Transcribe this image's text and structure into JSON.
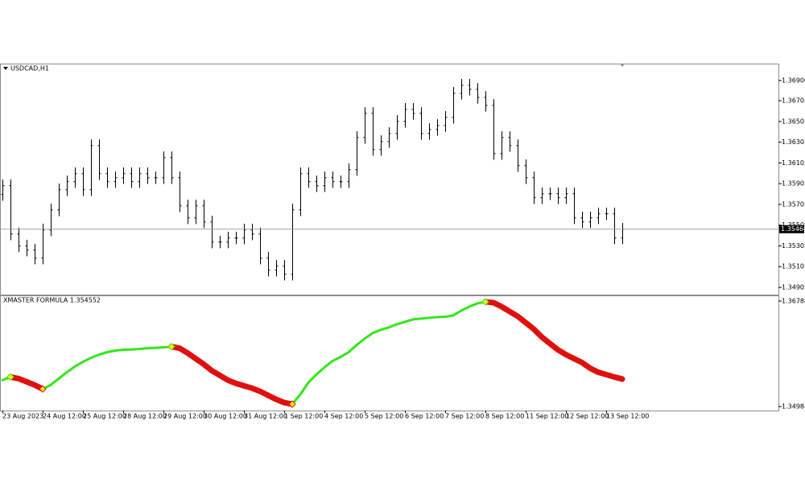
{
  "chart_data": [
    {
      "type": "ohlc",
      "title": "USDCAD,H1",
      "color": "#000000",
      "price_line_color": "#9a9a9a",
      "categories": [
        "23 Aug 2023",
        null,
        null,
        null,
        null,
        "24 Aug 12:00",
        null,
        null,
        null,
        null,
        "25 Aug 12:00",
        null,
        null,
        null,
        null,
        "28 Aug 12:00",
        null,
        null,
        null,
        null,
        "29 Aug 12:00",
        null,
        null,
        null,
        null,
        "30 Aug 12:00",
        null,
        null,
        null,
        null,
        "31 Aug 12:00",
        null,
        null,
        null,
        null,
        "1 Sep 12:00",
        null,
        null,
        null,
        null,
        "4 Sep 12:00",
        null,
        null,
        null,
        null,
        "5 Sep 12:00",
        null,
        null,
        null,
        null,
        "6 Sep 12:00",
        null,
        null,
        null,
        null,
        "7 Sep 12:00",
        null,
        null,
        null,
        null,
        "8 Sep 12:00",
        null,
        null,
        null,
        null,
        "11 Sep 12:00",
        null,
        null,
        null,
        null,
        "12 Sep 12:00",
        null,
        null,
        null,
        null,
        "13 Sep 12:00",
        null,
        null
      ],
      "open": [
        1.358,
        1.35885,
        1.3542,
        1.35304,
        1.35265,
        1.35187,
        1.35459,
        1.35652,
        1.35846,
        1.35924,
        1.36001,
        1.35846,
        1.36272,
        1.36001,
        1.35924,
        1.35962,
        1.36001,
        1.35924,
        1.36001,
        1.35962,
        1.35962,
        1.36156,
        1.35962,
        1.35691,
        1.35575,
        1.35691,
        1.35536,
        1.35342,
        1.35342,
        1.35381,
        1.35381,
        1.35459,
        1.3542,
        1.35187,
        1.35071,
        1.3511,
        1.35032,
        1.35652,
        1.36001,
        1.35924,
        1.35885,
        1.35962,
        1.35924,
        1.35924,
        1.3604,
        1.3635,
        1.36582,
        1.36234,
        1.36311,
        1.36389,
        1.36505,
        1.36621,
        1.36582,
        1.36389,
        1.36427,
        1.36466,
        1.36544,
        1.36776,
        1.36854,
        1.36815,
        1.36737,
        1.3666,
        1.36195,
        1.3635,
        1.36272,
        1.36079,
        1.35962,
        1.35769,
        1.35807,
        1.35807,
        1.35769,
        1.35807,
        1.35575,
        1.35536,
        1.35575,
        1.35614,
        1.35614,
        1.35381
      ],
      "high": [
        1.35945,
        1.35945,
        1.3548,
        1.35364,
        1.35325,
        1.35519,
        1.35712,
        1.35906,
        1.35984,
        1.36061,
        1.36061,
        1.36332,
        1.36332,
        1.36061,
        1.36022,
        1.36061,
        1.36061,
        1.36061,
        1.36061,
        1.36022,
        1.36216,
        1.36216,
        1.36022,
        1.35751,
        1.35751,
        1.35751,
        1.35596,
        1.35402,
        1.35441,
        1.35441,
        1.35519,
        1.35519,
        1.3548,
        1.35247,
        1.3517,
        1.3517,
        1.35712,
        1.36061,
        1.36061,
        1.35984,
        1.36022,
        1.36022,
        1.35984,
        1.361,
        1.3641,
        1.36642,
        1.36642,
        1.36371,
        1.36449,
        1.36565,
        1.36681,
        1.36681,
        1.36642,
        1.36487,
        1.36526,
        1.36604,
        1.36836,
        1.36914,
        1.36914,
        1.36875,
        1.36797,
        1.3672,
        1.3641,
        1.3641,
        1.36332,
        1.36139,
        1.36022,
        1.35867,
        1.35867,
        1.35867,
        1.35867,
        1.35867,
        1.35635,
        1.35635,
        1.35674,
        1.35674,
        1.35674,
        1.35526
      ],
      "low": [
        1.3574,
        1.3536,
        1.35244,
        1.35205,
        1.35127,
        1.35127,
        1.35399,
        1.35592,
        1.35786,
        1.35864,
        1.35786,
        1.35786,
        1.35941,
        1.35864,
        1.35864,
        1.35902,
        1.35864,
        1.35864,
        1.35902,
        1.35902,
        1.35902,
        1.35902,
        1.35631,
        1.35515,
        1.35515,
        1.35476,
        1.35282,
        1.35282,
        1.35282,
        1.35321,
        1.35321,
        1.3536,
        1.35127,
        1.35011,
        1.35011,
        1.34972,
        1.34972,
        1.35592,
        1.35864,
        1.35825,
        1.35825,
        1.35864,
        1.35864,
        1.35864,
        1.3598,
        1.3629,
        1.36174,
        1.36174,
        1.36251,
        1.36329,
        1.36445,
        1.36522,
        1.36329,
        1.36329,
        1.36367,
        1.36406,
        1.36484,
        1.36716,
        1.36755,
        1.36677,
        1.366,
        1.36135,
        1.36135,
        1.36212,
        1.36019,
        1.35902,
        1.35709,
        1.35709,
        1.35747,
        1.35709,
        1.35709,
        1.35515,
        1.35476,
        1.35476,
        1.35515,
        1.35554,
        1.35321,
        1.35321
      ],
      "close": [
        1.35885,
        1.3542,
        1.35304,
        1.35265,
        1.35187,
        1.35459,
        1.35652,
        1.35846,
        1.35924,
        1.36001,
        1.35846,
        1.36272,
        1.36001,
        1.35924,
        1.35962,
        1.36001,
        1.35924,
        1.36001,
        1.35962,
        1.35962,
        1.36156,
        1.35962,
        1.35691,
        1.35575,
        1.35691,
        1.35536,
        1.35342,
        1.35342,
        1.35381,
        1.35381,
        1.35459,
        1.3542,
        1.35187,
        1.35071,
        1.3511,
        1.35032,
        1.35652,
        1.36001,
        1.35924,
        1.35885,
        1.35962,
        1.35924,
        1.35924,
        1.3604,
        1.3635,
        1.36582,
        1.36234,
        1.36311,
        1.36389,
        1.36505,
        1.36621,
        1.36582,
        1.36389,
        1.36427,
        1.36466,
        1.36544,
        1.36776,
        1.36854,
        1.36815,
        1.36737,
        1.3666,
        1.36195,
        1.3635,
        1.36272,
        1.36079,
        1.35962,
        1.35769,
        1.35807,
        1.35807,
        1.35769,
        1.35807,
        1.35575,
        1.35536,
        1.35575,
        1.35614,
        1.35614,
        1.35381,
        1.35466
      ],
      "current_price": 1.35466,
      "ylim": [
        1.34835,
        1.37055
      ],
      "yticks": [
        {
          "value": 1.369,
          "label": "1.36900"
        },
        1.36705,
        1.36505,
        1.36305,
        1.36105,
        1.35905,
        1.35705,
        1.35505,
        1.35305,
        1.35105,
        1.34905
      ]
    },
    {
      "type": "line",
      "title": "XMASTER FORMULA 1.354552",
      "up_color": "#33e61a",
      "down_color": "#e01010",
      "marker_color": "#ffee00",
      "values": [
        1.354353,
        1.354899,
        1.354626,
        1.354079,
        1.353533,
        1.352849,
        1.353533,
        1.354626,
        1.355719,
        1.356676,
        1.357496,
        1.358179,
        1.358725,
        1.359135,
        1.359409,
        1.359545,
        1.3596,
        1.359682,
        1.359819,
        1.35988,
        1.359955,
        1.360092,
        1.359819,
        1.358999,
        1.358042,
        1.357086,
        1.355992,
        1.355173,
        1.354353,
        1.353806,
        1.353396,
        1.352986,
        1.35244,
        1.351756,
        1.351073,
        1.350526,
        1.350253,
        1.351893,
        1.353943,
        1.355309,
        1.356539,
        1.357632,
        1.358315,
        1.359135,
        1.360365,
        1.361458,
        1.362415,
        1.362962,
        1.363372,
        1.363918,
        1.364328,
        1.364738,
        1.364875,
        1.365011,
        1.365148,
        1.3652,
        1.365421,
        1.366241,
        1.366924,
        1.367471,
        1.367744,
        1.367608,
        1.366924,
        1.366105,
        1.365285,
        1.364191,
        1.363098,
        1.361732,
        1.360639,
        1.359545,
        1.358725,
        1.358042,
        1.357359,
        1.356402,
        1.355719,
        1.355309,
        1.354899,
        1.354552
      ],
      "ylim": [
        1.34916,
        1.368701
      ],
      "yticks": [
        1.367881,
        1.349843
      ]
    }
  ]
}
